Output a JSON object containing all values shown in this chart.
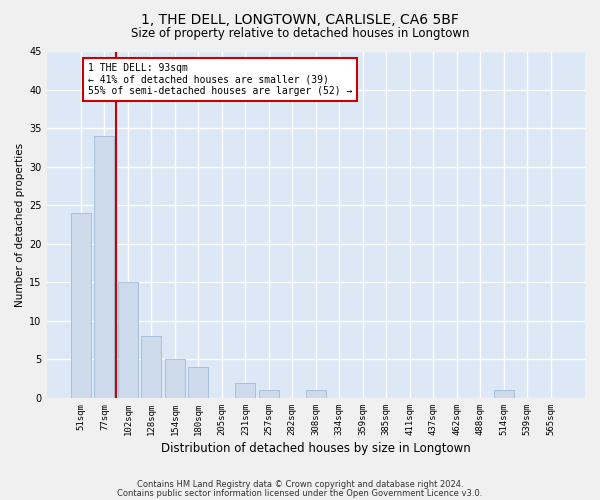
{
  "title": "1, THE DELL, LONGTOWN, CARLISLE, CA6 5BF",
  "subtitle": "Size of property relative to detached houses in Longtown",
  "xlabel": "Distribution of detached houses by size in Longtown",
  "ylabel": "Number of detached properties",
  "categories": [
    "51sqm",
    "77sqm",
    "102sqm",
    "128sqm",
    "154sqm",
    "180sqm",
    "205sqm",
    "231sqm",
    "257sqm",
    "282sqm",
    "308sqm",
    "334sqm",
    "359sqm",
    "385sqm",
    "411sqm",
    "437sqm",
    "462sqm",
    "488sqm",
    "514sqm",
    "539sqm",
    "565sqm"
  ],
  "values": [
    24,
    34,
    15,
    8,
    5,
    4,
    0,
    2,
    1,
    0,
    1,
    0,
    0,
    0,
    0,
    0,
    0,
    0,
    1,
    0,
    0
  ],
  "bar_color": "#ccdaeb",
  "bar_edge_color": "#a0bcd8",
  "red_line_color": "#cc0000",
  "annotation_box_facecolor": "#ffffff",
  "annotation_box_edgecolor": "#cc0000",
  "property_label": "1 THE DELL: 93sqm",
  "annotation_line1": "← 41% of detached houses are smaller (39)",
  "annotation_line2": "55% of semi-detached houses are larger (52) →",
  "ylim": [
    0,
    45
  ],
  "yticks": [
    0,
    5,
    10,
    15,
    20,
    25,
    30,
    35,
    40,
    45
  ],
  "bg_color": "#dce8f5",
  "fig_bg_color": "#f0f0f0",
  "grid_color": "#ffffff",
  "footer_line1": "Contains HM Land Registry data © Crown copyright and database right 2024.",
  "footer_line2": "Contains public sector information licensed under the Open Government Licence v3.0.",
  "title_fontsize": 10,
  "subtitle_fontsize": 8.5,
  "xlabel_fontsize": 8.5,
  "ylabel_fontsize": 7.5,
  "tick_fontsize": 6.5,
  "annotation_fontsize": 7,
  "footer_fontsize": 6
}
